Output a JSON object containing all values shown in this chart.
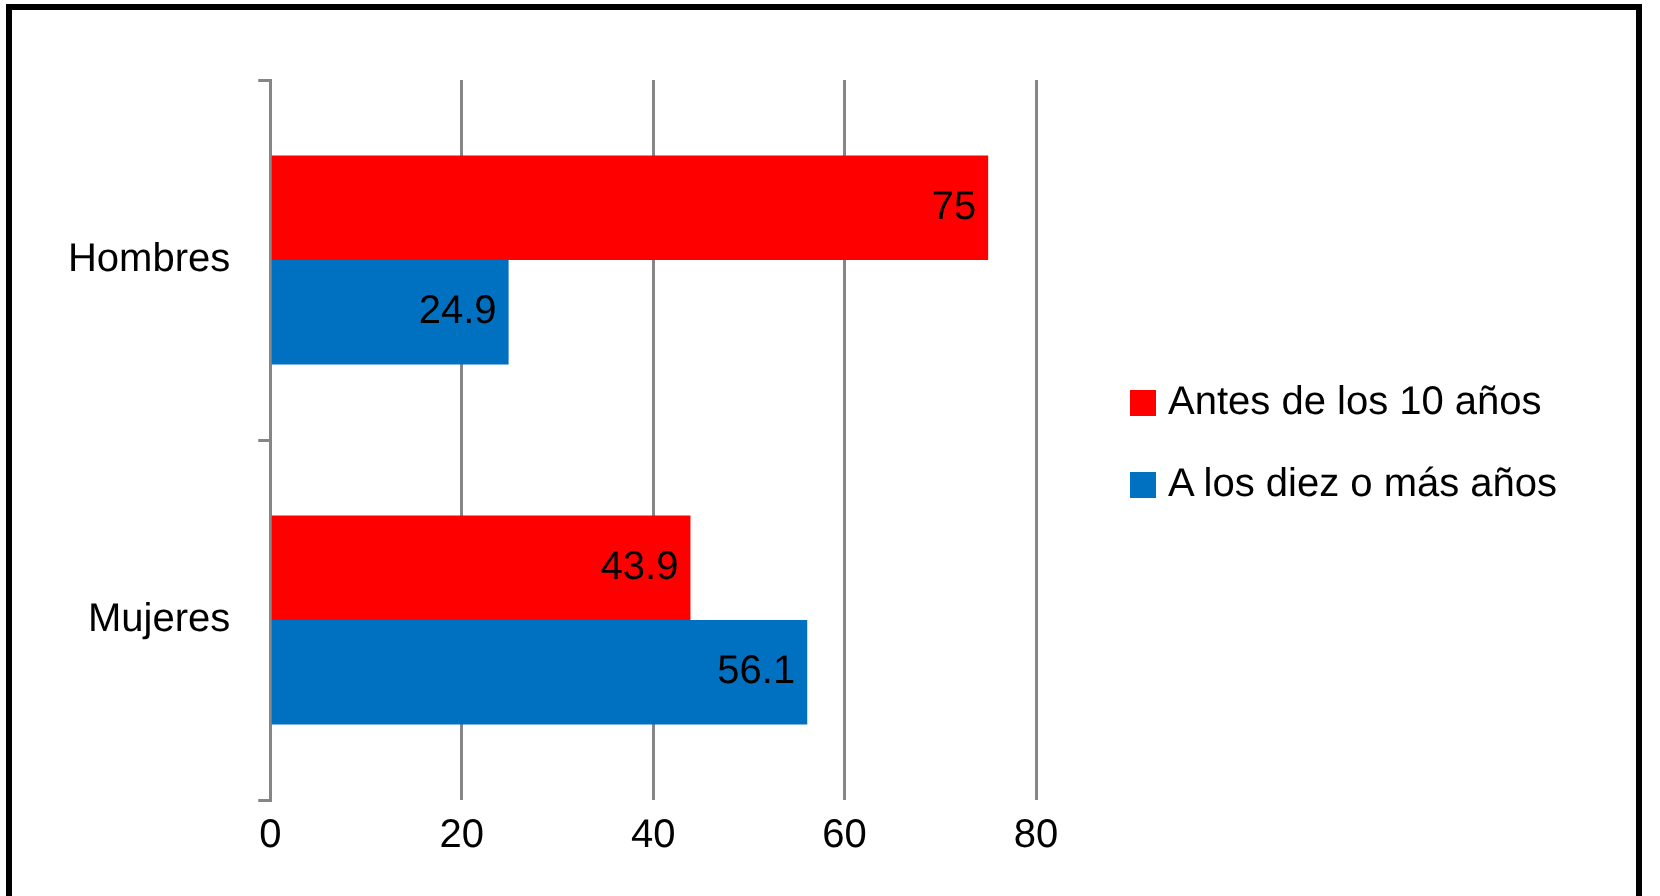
{
  "chart_data": {
    "type": "bar",
    "orientation": "horizontal",
    "categories": [
      "Hombres",
      "Mujeres"
    ],
    "series": [
      {
        "name": "Antes de los 10 años",
        "color": "#ff0000",
        "values": [
          75,
          43.9
        ]
      },
      {
        "name": "A los diez o más años",
        "color": "#0070c0",
        "values": [
          24.9,
          56.1
        ]
      }
    ],
    "xlim": [
      0,
      80
    ],
    "xticks": [
      0,
      20,
      40,
      60,
      80
    ],
    "grid": "x",
    "legend": "right",
    "data_labels": true
  }
}
